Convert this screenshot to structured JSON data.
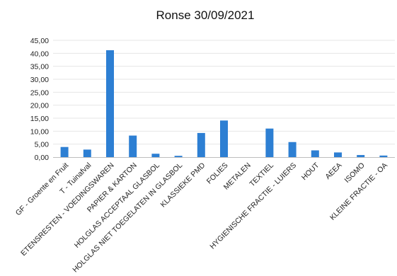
{
  "chart_data": {
    "type": "bar",
    "title": "Ronse 30/09/2021",
    "categories": [
      "GF - Groente en Fruit",
      "T - Tuinafval",
      "ETENSRESTEN - VOEDINGSWAREN",
      "PAPIER & KARTON",
      "HOLGLAS ACCEPTAAL GLASBOL",
      "HOLGLAS NIET TOEGELATEN IN GLASBOL",
      "KLASSIEKE PMD",
      "FOLIES",
      "METALEN",
      "TEXTIEL",
      "HYGIENISCHE FRACTIE - LUIERS",
      "HOUT",
      "AEEA",
      "ISOMO",
      "KLEINE FRACTIE - OA"
    ],
    "values": [
      3.9,
      2.9,
      41.2,
      8.3,
      1.3,
      0.5,
      9.3,
      14.1,
      0.0,
      11.0,
      5.8,
      2.6,
      1.8,
      0.8,
      0.6
    ],
    "y_ticks": [
      "0,00",
      "5,00",
      "10,00",
      "15,00",
      "20,00",
      "25,00",
      "30,00",
      "35,00",
      "40,00",
      "45,00"
    ],
    "ylim": [
      0,
      45
    ],
    "grid": true,
    "legend": "none",
    "bar_color": "#2d7fd3"
  }
}
